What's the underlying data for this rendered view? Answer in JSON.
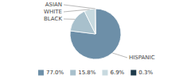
{
  "chart_data": {
    "type": "pie",
    "categories": [
      "HISPANIC",
      "BLACK",
      "WHITE",
      "ASIAN"
    ],
    "values": [
      77.0,
      15.8,
      6.9,
      0.3
    ],
    "value_labels": [
      "77.0%",
      "15.8%",
      "6.9%",
      "0.3%"
    ],
    "colors": [
      "#6d8fa8",
      "#a8c0cc",
      "#c8dae0",
      "#1e3a4a"
    ],
    "legend": "bottom"
  }
}
